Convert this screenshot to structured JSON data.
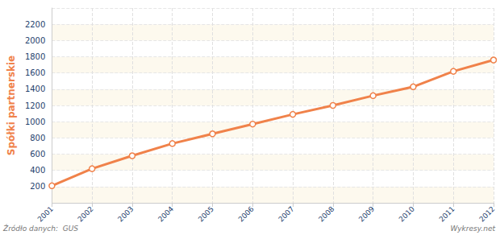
{
  "chart_data": {
    "type": "line",
    "y_label": "Spółki partnerskie",
    "source": "Źródło danych:  GUS",
    "credit": "Wykresy.net",
    "watermark": "wykresy.net",
    "categories": [
      "2001",
      "2002",
      "2003",
      "2004",
      "2005",
      "2006",
      "2007",
      "2008",
      "2009",
      "2010",
      "2011",
      "2012"
    ],
    "values": [
      210,
      420,
      580,
      730,
      850,
      970,
      1090,
      1200,
      1320,
      1430,
      1620,
      1760
    ],
    "color": "#f0824a",
    "marker": "circle",
    "ylim": [
      0,
      2400
    ],
    "yticks": [
      200,
      400,
      600,
      800,
      1000,
      1200,
      1400,
      1600,
      1800,
      2000,
      2200
    ],
    "grid": true
  }
}
